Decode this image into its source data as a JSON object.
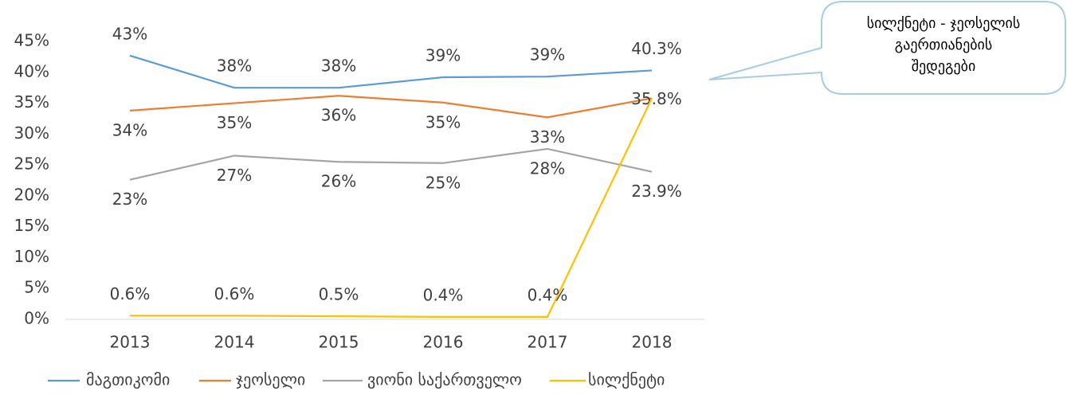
{
  "chart_data": {
    "type": "line",
    "x": [
      "2013",
      "2014",
      "2015",
      "2016",
      "2017",
      "2018"
    ],
    "series": [
      {
        "name": "მაგთიკომი",
        "color": "#5b9bd5",
        "values": [
          42.7,
          37.5,
          37.5,
          39.2,
          39.3,
          40.3
        ],
        "value_labels": [
          "43%",
          "38%",
          "38%",
          "39%",
          "39%",
          "40.3%"
        ],
        "label_side": "above"
      },
      {
        "name": "ჯეოსელი",
        "color": "#ed7d31",
        "values": [
          33.8,
          35,
          36.2,
          35.1,
          32.7,
          35.8
        ],
        "value_labels": [
          "34%",
          "35%",
          "36%",
          "35%",
          "33%",
          "35.8%"
        ],
        "label_side": "below"
      },
      {
        "name": "ვიონი საქართველო",
        "color": "#a5a5a5",
        "values": [
          22.6,
          26.5,
          25.5,
          25.3,
          27.6,
          23.9
        ],
        "value_labels": [
          "23%",
          "27%",
          "26%",
          "25%",
          "28%",
          "23.9%"
        ],
        "label_side": "below"
      },
      {
        "name": "სილქნეტი",
        "color": "#ffc000",
        "values": [
          0.6,
          0.6,
          0.5,
          0.4,
          0.4,
          35.8
        ],
        "value_labels": [
          "0.6%",
          "0.6%",
          "0.5%",
          "0.4%",
          "0.4%",
          null
        ],
        "label_side": "above"
      }
    ],
    "ylim": [
      0,
      45
    ],
    "yticks": [
      {
        "value": 0,
        "label": "0%"
      },
      {
        "value": 5,
        "label": "5%"
      },
      {
        "value": 10,
        "label": "10%"
      },
      {
        "value": 15,
        "label": "15%"
      },
      {
        "value": 20,
        "label": "20%"
      },
      {
        "value": 25,
        "label": "25%"
      },
      {
        "value": 30,
        "label": "30%"
      },
      {
        "value": 35,
        "label": "35%"
      },
      {
        "value": 40,
        "label": "40%"
      },
      {
        "value": 45,
        "label": "45%"
      }
    ],
    "grid": false,
    "legend": "bottom",
    "annotation": [
      "სილქნეტი - ჯეოსელის",
      "გაერთიანების",
      "შედეგები"
    ]
  }
}
